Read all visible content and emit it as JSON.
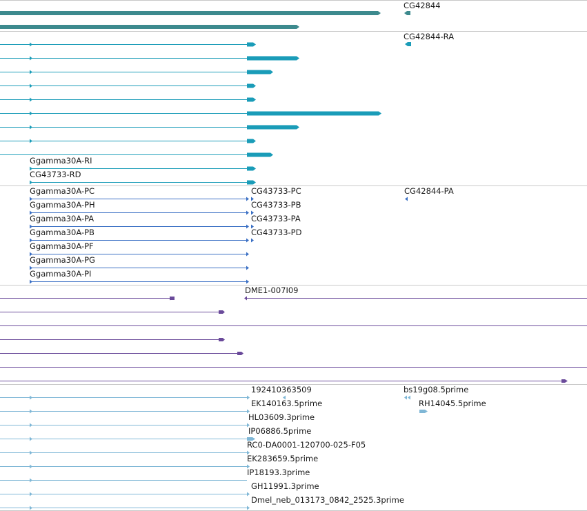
{
  "colors": {
    "gene": "#3d8a8e",
    "mrna": "#1a9cb8",
    "cds": "#3a6fc4",
    "clone": "#6a4a9a",
    "est": "#7fb7d6",
    "separator": "#c8c8c8"
  },
  "tracks": {
    "gene": {
      "labels": [
        "CG42844"
      ]
    },
    "mrna": {
      "labels": [
        "CG42844-RA",
        "Ggamma30A-RI",
        "CG43733-RD"
      ]
    },
    "protein": {
      "left_labels": [
        "Ggamma30A-PC",
        "Ggamma30A-PH",
        "Ggamma30A-PA",
        "Ggamma30A-PB",
        "Ggamma30A-PF",
        "Ggamma30A-PG",
        "Ggamma30A-PI"
      ],
      "mid_labels": [
        "CG43733-PC",
        "CG43733-PB",
        "CG43733-PA",
        "CG43733-PD"
      ],
      "right_label": "CG42844-PA"
    },
    "clone": {
      "labels": [
        "DME1-007I09"
      ]
    },
    "est": {
      "labels": [
        "192410363509",
        "bs19g08.5prime",
        "EK140163.5prime",
        "RH14045.5prime",
        "HL03609.3prime",
        "IP06886.5prime",
        "RC0-DA0001-120700-025-F05",
        "EK283659.5prime",
        "IP18193.3prime",
        "GH11991.3prime",
        "Dmel_neb_013173_0842_2525.3prime"
      ]
    }
  }
}
